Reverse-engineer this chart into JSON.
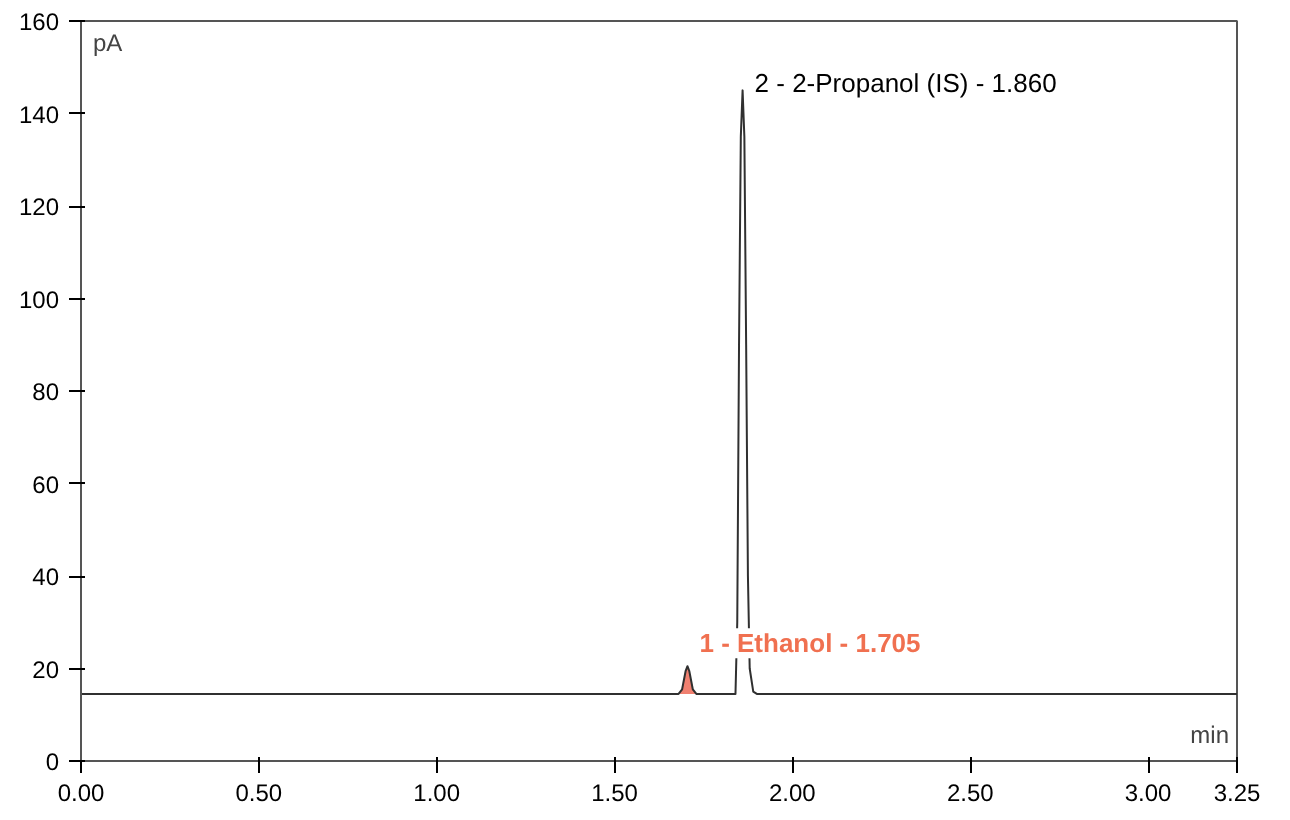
{
  "chart_data": {
    "type": "line",
    "xlabel": "min",
    "ylabel": "pA",
    "xlim": [
      0,
      3.25
    ],
    "ylim": [
      0,
      160
    ],
    "xticks": [
      {
        "value": 0,
        "label": "0.00"
      },
      {
        "value": 0.5,
        "label": "0.50"
      },
      {
        "value": 1,
        "label": "1.00"
      },
      {
        "value": 1.5,
        "label": "1.50"
      },
      {
        "value": 2,
        "label": "2.00"
      },
      {
        "value": 2.5,
        "label": "2.50"
      },
      {
        "value": 3,
        "label": "3.00"
      },
      {
        "value": 3.25,
        "label": "3.25"
      }
    ],
    "yticks": [
      0,
      20,
      40,
      60,
      80,
      100,
      120,
      140,
      160
    ],
    "grid": false,
    "series": [
      {
        "type": "area",
        "color": "#f08070",
        "x": [
          1.68,
          1.69,
          1.7,
          1.705,
          1.71,
          1.72,
          1.73
        ],
        "values": [
          14.5,
          15.5,
          19.5,
          20.5,
          19.5,
          15.5,
          14.5
        ]
      },
      {
        "color": "#303030",
        "x": [
          0,
          1.68,
          1.69,
          1.7,
          1.705,
          1.71,
          1.72,
          1.73,
          1.84,
          1.845,
          1.85,
          1.855,
          1.86,
          1.865,
          1.87,
          1.875,
          1.88,
          1.89,
          1.9,
          3.25
        ],
        "values": [
          14.5,
          14.5,
          15.5,
          19.5,
          20.5,
          19.5,
          15.5,
          14.5,
          14.5,
          30,
          90,
          135,
          145,
          135,
          90,
          40,
          20,
          15,
          14.5,
          14.5
        ]
      }
    ],
    "annotations": [
      {
        "text": "1 - Ethanol - 1.705",
        "x": 1.705,
        "y": 20.5
      },
      {
        "text": "2 - 2-Propanol (IS) - 1.860",
        "x": 1.86,
        "y": 145
      }
    ]
  }
}
